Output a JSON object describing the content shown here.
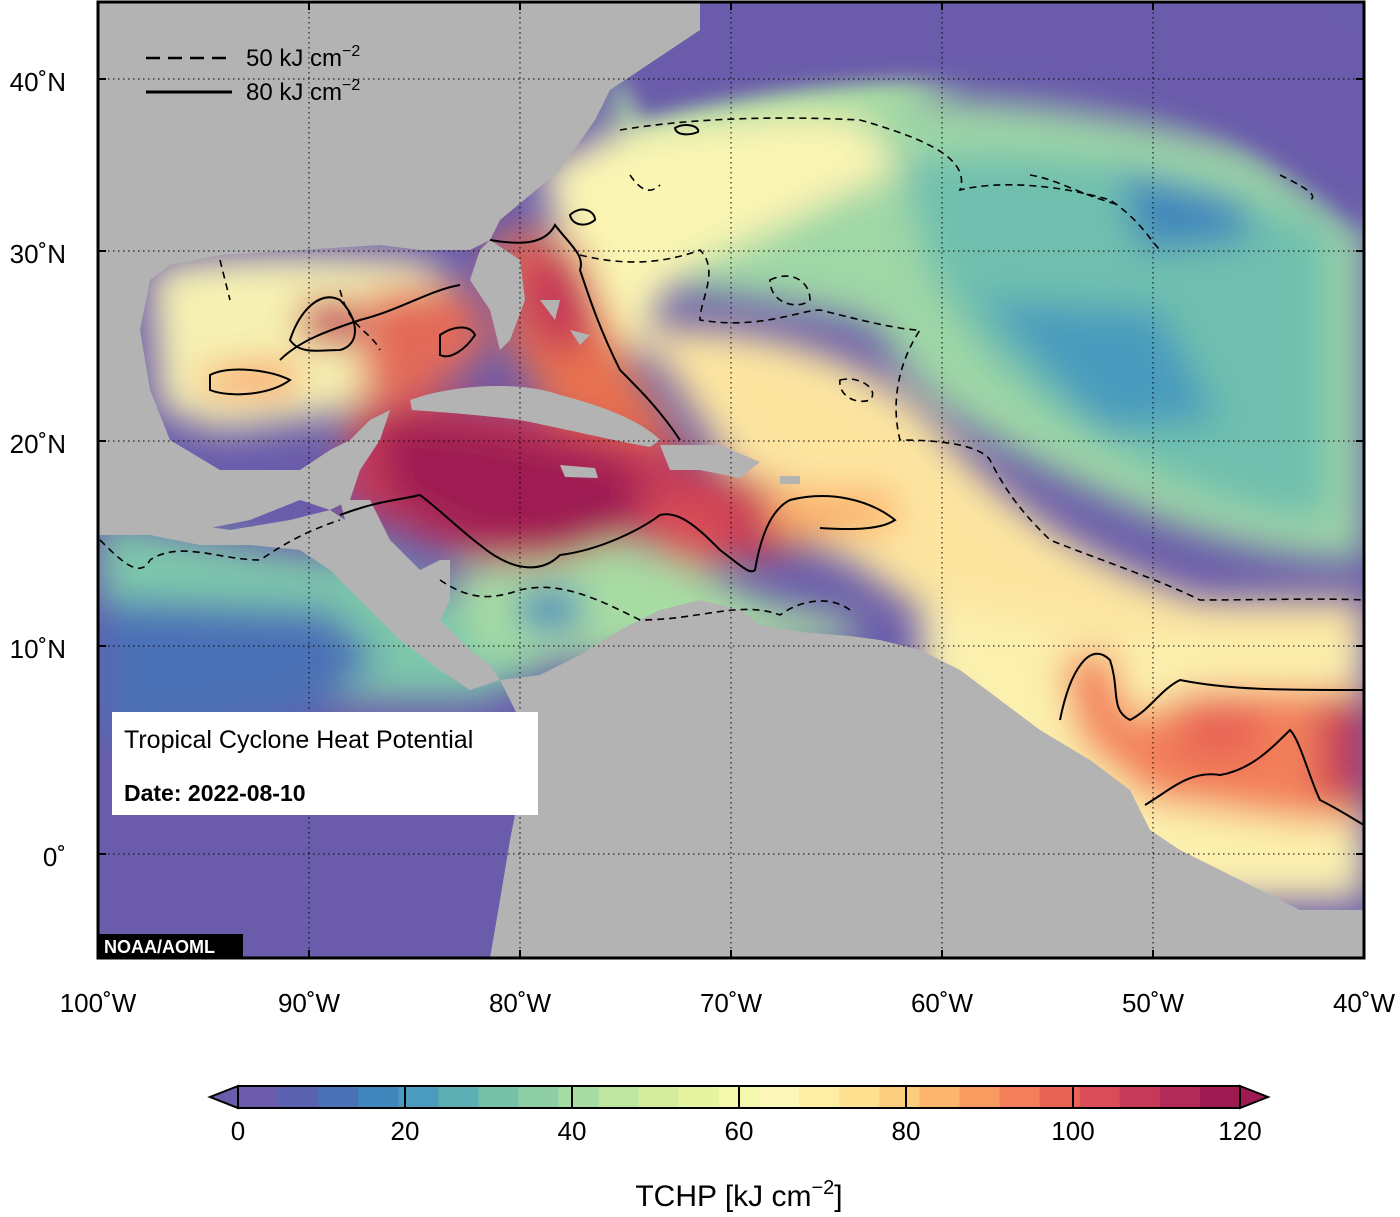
{
  "map": {
    "title_box": {
      "title": "Tropical Cyclone Heat Potential",
      "date_label": "Date: 2022-08-10"
    },
    "credit": "NOAA/AOML",
    "legend": {
      "dashed": {
        "value": "50 kJ cm",
        "exp": "−2"
      },
      "solid": {
        "value": "80 kJ cm",
        "exp": "−2"
      }
    },
    "lat_labels": [
      "40˚N",
      "30˚N",
      "20˚N",
      "10˚N",
      "0˚"
    ],
    "lon_labels": [
      "100˚W",
      "90˚W",
      "80˚W",
      "70˚W",
      "60˚W",
      "50˚W",
      "40˚W"
    ],
    "colorbar": {
      "ticks": [
        "0",
        "20",
        "40",
        "60",
        "80",
        "100",
        "120"
      ],
      "label": "TCHP [kJ cm",
      "label_exp": "−2",
      "label_close": "]",
      "colors": [
        "#6a5cab",
        "#5a62b0",
        "#4b71b6",
        "#3f86bc",
        "#4a9bbd",
        "#5cb0b4",
        "#75c2a9",
        "#8fcfa6",
        "#a7dca3",
        "#bfe6a0",
        "#d4ec9e",
        "#e6f3a1",
        "#f3f8ad",
        "#fbf8b9",
        "#fdeea3",
        "#fde090",
        "#fdcd7f",
        "#fcb46e",
        "#f99b60",
        "#f3805a",
        "#e86556",
        "#d84d57",
        "#c63a59",
        "#b22a58",
        "#9e1b52"
      ]
    },
    "colors": {
      "land": "#b3b3b3",
      "ocean_low": "#6a5cab",
      "ocean_high": "#a3124f"
    }
  }
}
